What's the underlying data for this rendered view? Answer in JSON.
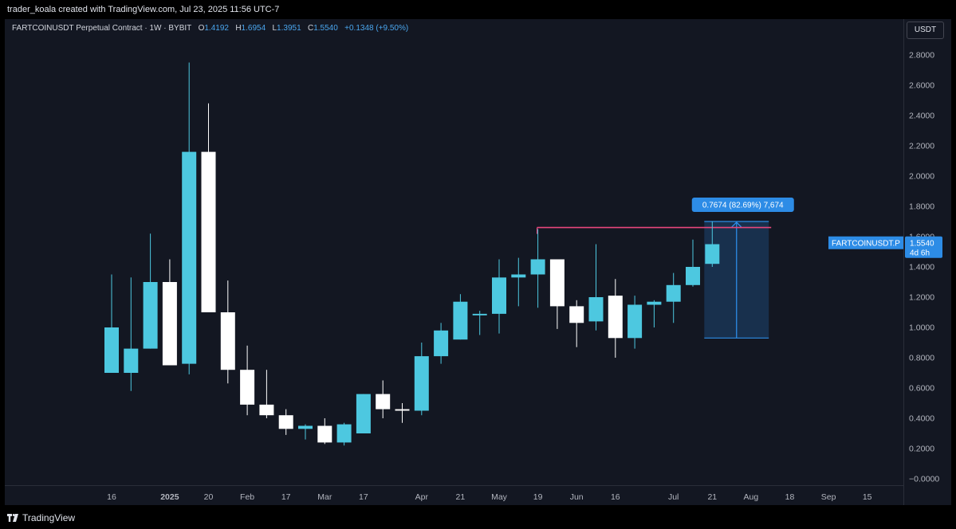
{
  "header": {
    "credit": "trader_koala created with TradingView.com, Jul 23, 2025 11:56 UTC-7"
  },
  "legend": {
    "symbol": "FARTCOINUSDT Perpetual Contract · 1W · BYBIT",
    "open_label": "O",
    "open": "1.4192",
    "high_label": "H",
    "high": "1.6954",
    "low_label": "L",
    "low": "1.3951",
    "close_label": "C",
    "close": "1.5540",
    "change": "+0.1348 (+9.50%)"
  },
  "currency": "USDT",
  "price_label": {
    "symbol": "FARTCOINUSDT.P",
    "price": "1.5540",
    "countdown": "4d 6h"
  },
  "measure_label": "0.7674 (82.69%) 7,674",
  "footer": {
    "brand": "TradingView"
  },
  "colors": {
    "up": "#4dc8e0",
    "down": "#ffffff",
    "resistance": "#e8467c",
    "measure": "#2d8ce6",
    "background": "#131722"
  },
  "chart_data": {
    "type": "candlestick",
    "interval": "1W",
    "ylim": [
      -0.04,
      2.9
    ],
    "y_ticks": [
      "2.8000",
      "2.6000",
      "2.4000",
      "2.2000",
      "2.0000",
      "1.8000",
      "1.6000",
      "1.4000",
      "1.2000",
      "1.0000",
      "0.8000",
      "0.6000",
      "0.4000",
      "0.2000",
      "−0.0000"
    ],
    "x_ticks": [
      {
        "label": "16",
        "index": 0
      },
      {
        "label": "2025",
        "index": 3,
        "bold": true
      },
      {
        "label": "20",
        "index": 5
      },
      {
        "label": "Feb",
        "index": 7
      },
      {
        "label": "17",
        "index": 9
      },
      {
        "label": "Mar",
        "index": 11
      },
      {
        "label": "17",
        "index": 13
      },
      {
        "label": "Apr",
        "index": 16
      },
      {
        "label": "21",
        "index": 18
      },
      {
        "label": "May",
        "index": 20
      },
      {
        "label": "19",
        "index": 22
      },
      {
        "label": "Jun",
        "index": 24
      },
      {
        "label": "16",
        "index": 26
      },
      {
        "label": "Jul",
        "index": 29
      },
      {
        "label": "21",
        "index": 31
      },
      {
        "label": "Aug",
        "index": 33
      },
      {
        "label": "18",
        "index": 35
      },
      {
        "label": "Sep",
        "index": 37
      },
      {
        "label": "15",
        "index": 39
      }
    ],
    "candles": [
      {
        "o": 0.7,
        "h": 1.35,
        "l": 0.7,
        "c": 1.0
      },
      {
        "o": 0.7,
        "h": 1.33,
        "l": 0.58,
        "c": 0.86
      },
      {
        "o": 0.86,
        "h": 1.62,
        "l": 0.86,
        "c": 1.3
      },
      {
        "o": 1.3,
        "h": 1.45,
        "l": 0.75,
        "c": 0.75
      },
      {
        "o": 0.76,
        "h": 2.75,
        "l": 0.69,
        "c": 2.16
      },
      {
        "o": 2.16,
        "h": 2.48,
        "l": 1.1,
        "c": 1.1
      },
      {
        "o": 1.1,
        "h": 1.31,
        "l": 0.63,
        "c": 0.72
      },
      {
        "o": 0.72,
        "h": 0.88,
        "l": 0.42,
        "c": 0.49
      },
      {
        "o": 0.49,
        "h": 0.72,
        "l": 0.4,
        "c": 0.42
      },
      {
        "o": 0.42,
        "h": 0.46,
        "l": 0.29,
        "c": 0.33
      },
      {
        "o": 0.33,
        "h": 0.36,
        "l": 0.26,
        "c": 0.35
      },
      {
        "o": 0.35,
        "h": 0.4,
        "l": 0.23,
        "c": 0.24
      },
      {
        "o": 0.24,
        "h": 0.37,
        "l": 0.22,
        "c": 0.36
      },
      {
        "o": 0.3,
        "h": 0.56,
        "l": 0.3,
        "c": 0.56
      },
      {
        "o": 0.56,
        "h": 0.65,
        "l": 0.4,
        "c": 0.46
      },
      {
        "o": 0.46,
        "h": 0.5,
        "l": 0.37,
        "c": 0.45
      },
      {
        "o": 0.45,
        "h": 0.9,
        "l": 0.42,
        "c": 0.81
      },
      {
        "o": 0.81,
        "h": 1.03,
        "l": 0.76,
        "c": 0.98
      },
      {
        "o": 0.92,
        "h": 1.22,
        "l": 0.92,
        "c": 1.17
      },
      {
        "o": 1.08,
        "h": 1.11,
        "l": 0.95,
        "c": 1.09
      },
      {
        "o": 1.09,
        "h": 1.45,
        "l": 0.96,
        "c": 1.33
      },
      {
        "o": 1.33,
        "h": 1.46,
        "l": 1.14,
        "c": 1.35
      },
      {
        "o": 1.35,
        "h": 1.65,
        "l": 1.13,
        "c": 1.45
      },
      {
        "o": 1.45,
        "h": 1.45,
        "l": 0.99,
        "c": 1.14
      },
      {
        "o": 1.14,
        "h": 1.18,
        "l": 0.87,
        "c": 1.03
      },
      {
        "o": 1.04,
        "h": 1.55,
        "l": 0.98,
        "c": 1.2
      },
      {
        "o": 1.21,
        "h": 1.32,
        "l": 0.8,
        "c": 0.93
      },
      {
        "o": 0.93,
        "h": 1.21,
        "l": 0.86,
        "c": 1.15
      },
      {
        "o": 1.15,
        "h": 1.18,
        "l": 1.0,
        "c": 1.17
      },
      {
        "o": 1.17,
        "h": 1.36,
        "l": 1.03,
        "c": 1.28
      },
      {
        "o": 1.28,
        "h": 1.58,
        "l": 1.27,
        "c": 1.4
      },
      {
        "o": 1.42,
        "h": 1.7,
        "l": 1.4,
        "c": 1.55
      }
    ],
    "resistance": {
      "price": 1.66,
      "from_index": 22,
      "to_index": 34
    },
    "measure": {
      "from_price": 0.93,
      "to_price": 1.7,
      "from_index": 31,
      "to_index": 34
    }
  }
}
